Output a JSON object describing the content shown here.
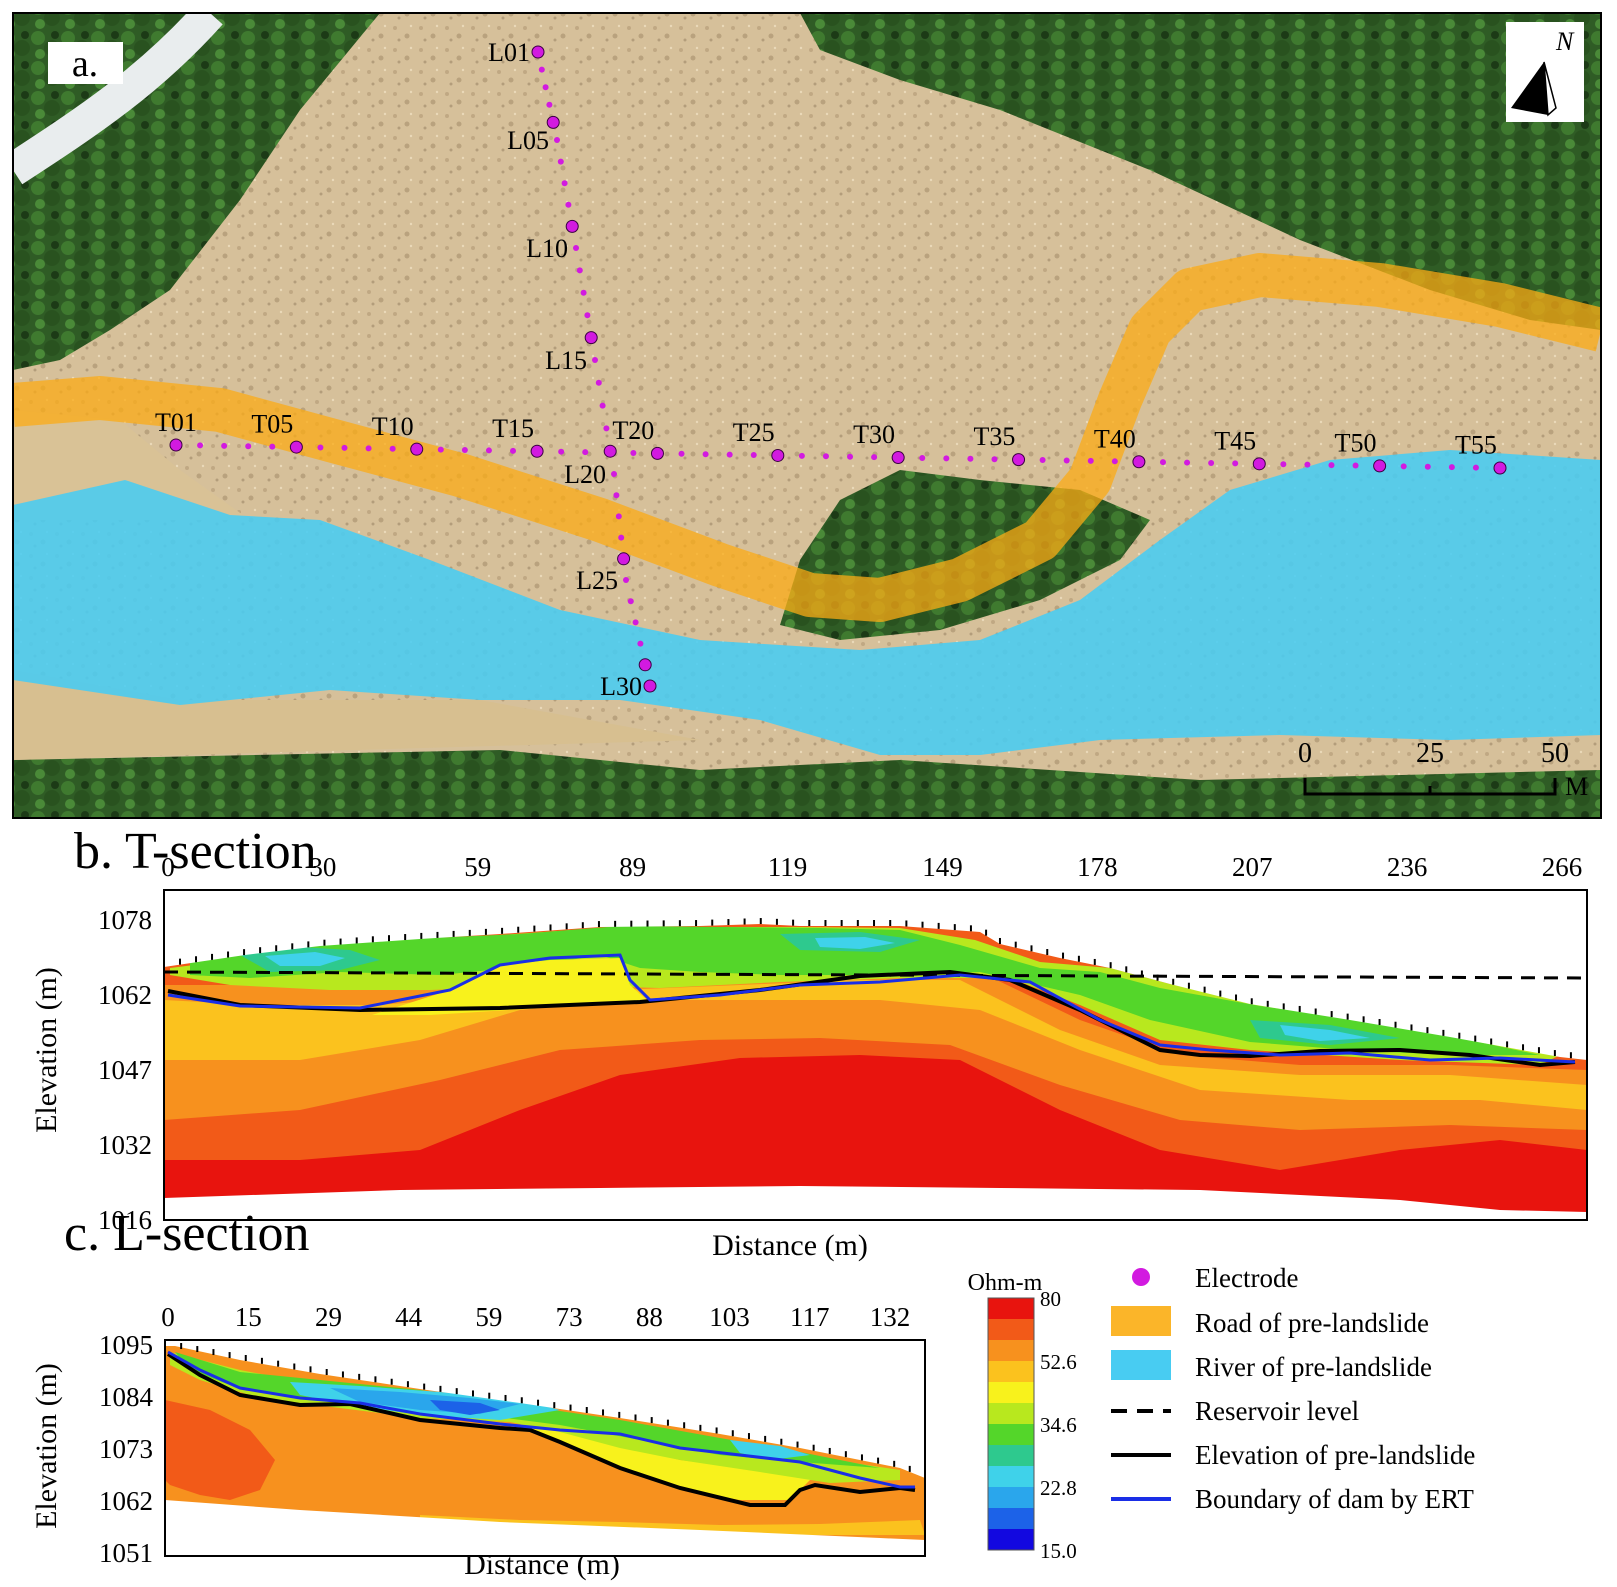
{
  "panel_a": {
    "label": "a.",
    "north_label": "N",
    "scale_bar": {
      "ticks": [
        "0",
        "25",
        "50"
      ],
      "unit": "M"
    },
    "transverse_labels": [
      "T01",
      "T05",
      "T10",
      "T15",
      "T20",
      "T25",
      "T30",
      "T35",
      "T40",
      "T45",
      "T50",
      "T55"
    ],
    "longitudinal_labels": [
      "L01",
      "L05",
      "L10",
      "L15",
      "L20",
      "L25",
      "L30"
    ]
  },
  "panel_b": {
    "title": "b. T-section",
    "x_ticks": [
      "0",
      "30",
      "59",
      "89",
      "119",
      "149",
      "178",
      "207",
      "236",
      "266"
    ],
    "y_ticks": [
      "1078",
      "1062",
      "1047",
      "1032",
      "1016"
    ],
    "ylabel": "Elevation (m)",
    "xlabel": "Distance (m)"
  },
  "panel_c": {
    "title": "c. L-section",
    "x_ticks": [
      "0",
      "15",
      "29",
      "44",
      "59",
      "73",
      "88",
      "103",
      "117",
      "132"
    ],
    "y_ticks": [
      "1095",
      "1084",
      "1073",
      "1062",
      "1051"
    ],
    "ylabel": "Elevation (m)",
    "xlabel": "Distance (m)"
  },
  "colorbar": {
    "title": "Ohm-m",
    "ticks": [
      "80",
      "52.6",
      "34.6",
      "22.8",
      "15.0"
    ],
    "colors": [
      "#e8140e",
      "#f25a18",
      "#f7911e",
      "#fbc21e",
      "#f8f21c",
      "#b8e81e",
      "#54d62a",
      "#2ec98e",
      "#3fd2ea",
      "#2aa6ec",
      "#1c62e8",
      "#1208e0"
    ]
  },
  "legend": {
    "items": [
      {
        "label": "Electrode",
        "color": "#d21ae0"
      },
      {
        "label": "Road of pre-landslide",
        "color": "#fbb529"
      },
      {
        "label": "River of pre-landslide",
        "color": "#48ccf2"
      },
      {
        "label": "Reservoir level",
        "color": "#000000"
      },
      {
        "label": "Elevation of pre-landslide",
        "color": "#000000"
      },
      {
        "label": "Boundary of dam by ERT",
        "color": "#1a2ee6"
      }
    ]
  }
}
